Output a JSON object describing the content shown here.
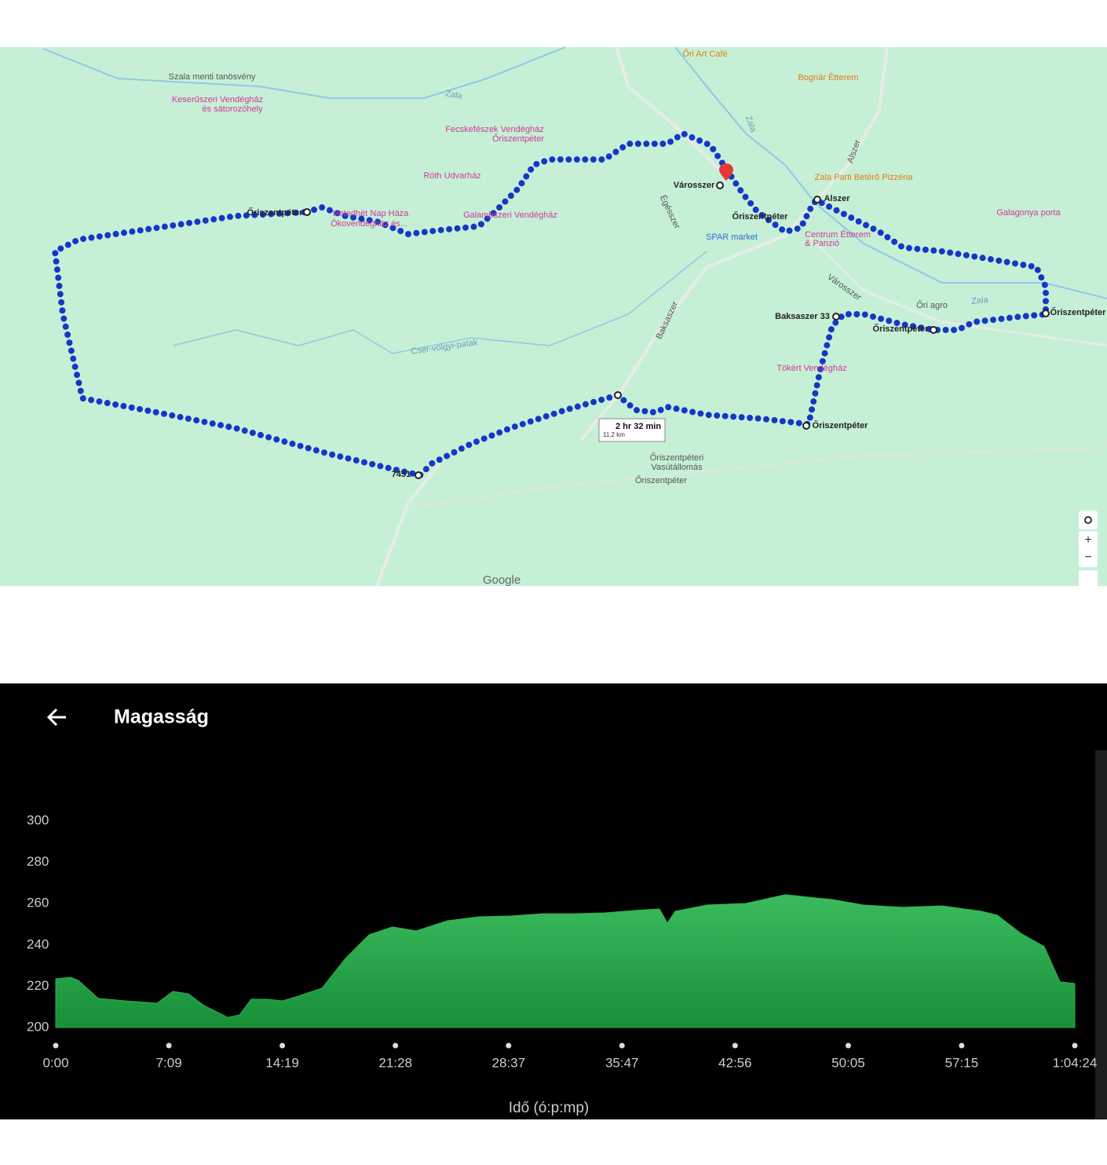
{
  "map": {
    "labels": [
      "Szala menti tanösvény",
      "Keserűszeri Vendégház",
      "és sátorozóhely",
      "Zala",
      "Fecskefészek Vendégház",
      "Őriszentpéter",
      "Róth Udvarház",
      "Őriszentpéter",
      "Hetedhét Nap Háza",
      "Ökovendégház és...",
      "Galambszeri Vendégház",
      "Őri Art Café",
      "Bognár Étterem",
      "Városszer",
      "Őriszentpéter",
      "SPAR market",
      "Zala Parti Betérő Pizzéria",
      "Alszer",
      "Centrum Étterem",
      "& Panzió",
      "Galagonya porta",
      "Őri agro",
      "Zala",
      "Őriszentpéter",
      "Baksaszer 33",
      "Őriszentpéter",
      "Tökért Vendégház",
      "Őriszentpéter",
      "Cser-völgyi-patak",
      "Őriszentpéteri",
      "Vasútállomás",
      "Őriszentpéter",
      "7451",
      "Baksaszer",
      "Városszer",
      "Égésszer",
      "Alszer",
      "Zala"
    ],
    "route": {
      "duration": "2 hr 32 min",
      "distance": "11,2 km"
    },
    "controls": [
      "+",
      "−"
    ],
    "logo": "Google"
  },
  "app": {
    "title": "Magasság"
  },
  "chart_data": {
    "type": "area",
    "color": "#2fae52",
    "x_label": "Idő (ó:p:mp)",
    "x": [
      0,
      57,
      86,
      161,
      265,
      384,
      444,
      503,
      563,
      652,
      697,
      741,
      801,
      860,
      920,
      1009,
      1099,
      1188,
      1277,
      1366,
      1486,
      1605,
      1724,
      1843,
      1962,
      2081,
      2200,
      2289,
      2319,
      2349,
      2468,
      2617,
      2766,
      2885,
      2944,
      3063,
      3212,
      3361,
      3510,
      3570,
      3659,
      3748,
      3808,
      3864
    ],
    "values": [
      223.6,
      224.3,
      222.8,
      214.1,
      212.9,
      211.8,
      217.5,
      216.3,
      210.6,
      204.9,
      206.1,
      213.7,
      213.7,
      212.9,
      215.2,
      219.0,
      233.5,
      244.9,
      248.7,
      246.8,
      251.7,
      253.6,
      254.0,
      255.1,
      255.1,
      255.5,
      256.7,
      257.4,
      250.6,
      256.3,
      259.3,
      260.1,
      264.3,
      262.7,
      262.0,
      259.3,
      258.2,
      258.9,
      256.3,
      254.4,
      245.6,
      239.2,
      222.1,
      221.3
    ],
    "xlim": [
      0,
      3864
    ],
    "ylim": [
      200,
      300
    ],
    "yticks": [
      200,
      220,
      240,
      260,
      280,
      300
    ],
    "xticks": [
      {
        "value": 0,
        "label": "0:00"
      },
      {
        "value": 429,
        "label": "7:09"
      },
      {
        "value": 859,
        "label": "14:19"
      },
      {
        "value": 1288,
        "label": "21:28"
      },
      {
        "value": 1717,
        "label": "28:37"
      },
      {
        "value": 2147,
        "label": "35:47"
      },
      {
        "value": 2576,
        "label": "42:56"
      },
      {
        "value": 3005,
        "label": "50:05"
      },
      {
        "value": 3435,
        "label": "57:15"
      },
      {
        "value": 3864,
        "label": "1:04:24"
      }
    ]
  }
}
